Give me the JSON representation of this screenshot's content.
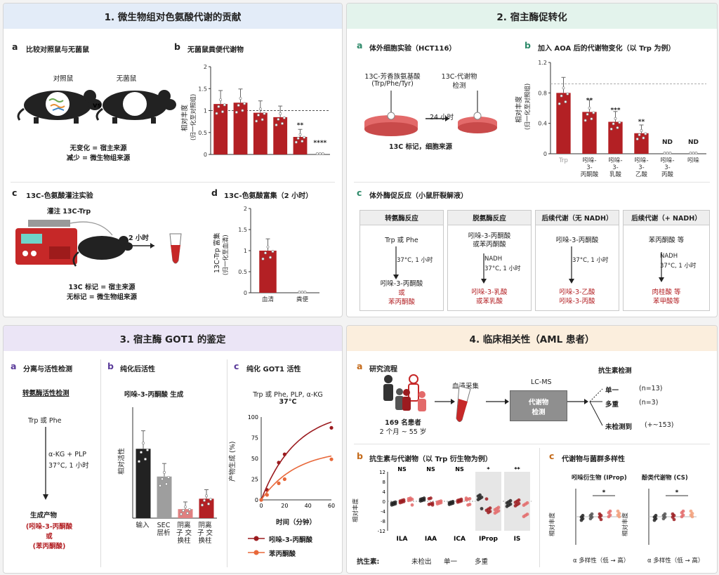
{
  "p1": {
    "title": "1. 微生物组对色氨酸代谢的贡献",
    "a": {
      "label": "a",
      "title": "比较对照鼠与无菌鼠",
      "control": "对照鼠",
      "germfree": "无菌鼠",
      "vs": "vs",
      "note1": "无变化 = 宿主来源",
      "note2": "减少 = 微生物组来源"
    },
    "b": {
      "label": "b",
      "title": "无菌鼠粪便代谢物",
      "ylabel": "相对丰度",
      "ysub": "(归一化至对照组)",
      "chart_data": {
        "type": "bar",
        "values": [
          1.15,
          1.18,
          0.95,
          0.85,
          0.4,
          0.0
        ],
        "sig": [
          "",
          "",
          "",
          "",
          "**",
          "****"
        ],
        "ylim": [
          0,
          2
        ],
        "yticks": [
          0,
          0.5,
          1.0,
          1.5,
          2.0
        ],
        "refline": 1.0
      }
    },
    "c": {
      "label": "c",
      "title": "13C-色氨酸灌注实验",
      "infuse": "灌注 13C-Trp",
      "time": "2 小时",
      "note1": "13C 标记 = 宿主来源",
      "note2": "无标记 = 微生物组来源"
    },
    "d": {
      "label": "d",
      "title": "13C-色氨酸富集（2 小时）",
      "ylabel": "13C-Trp 富集",
      "ysub": "(归一化至血清)",
      "chart_data": {
        "type": "bar",
        "categories": [
          "血清",
          "粪便"
        ],
        "values": [
          1.0,
          0.0
        ],
        "ylim": [
          0,
          2
        ],
        "yticks": [
          0,
          0.5,
          1.0,
          1.5,
          2.0
        ]
      }
    }
  },
  "p2": {
    "title": "2. 宿主酶促转化",
    "a": {
      "label": "a",
      "title": "体外细胞实验（HCT116）",
      "sub1": "13C-芳香族氨基酸",
      "sub2": "(Trp/Phe/Tyr)",
      "prod1": "13C-代谢物",
      "prod2": "检测",
      "time": "24 小时",
      "note": "13C 标记，细胞来源"
    },
    "b": {
      "label": "b",
      "title": "加入 AOA 后的代谢物变化（以 Trp 为例）",
      "ylabel": "相对丰度",
      "ysub": "(归一化至对照组)",
      "chart_data": {
        "type": "bar",
        "categories": [
          "Trp",
          "吲哚-3-丙酮酸",
          "吲哚-3-乳酸",
          "吲哚-3-乙酸",
          "吲哚-3-丙酸",
          "吲哚"
        ],
        "values": [
          0.8,
          0.55,
          0.42,
          0.27,
          0,
          0
        ],
        "sig": [
          "",
          "**",
          "***",
          "**",
          "ND",
          "ND"
        ],
        "last_label": "ND",
        "ylim": [
          0,
          1.2
        ],
        "yticks": [
          0,
          0.4,
          0.8,
          1.2
        ]
      }
    },
    "c": {
      "label": "c",
      "title": "体外酶促反应（小鼠肝裂解液）",
      "boxes": [
        {
          "head": "转氨酶反应",
          "sub": "Trp 或 Phe",
          "cond": "37°C, 1 小时",
          "prod1": "吲哚-3-丙酮酸",
          "prod2": "或",
          "prod3": "苯丙酮酸"
        },
        {
          "head": "脱氨酶反应",
          "sub": "吲哚-3-丙酮酸",
          "sub2": "或苯丙酮酸",
          "cond0": "NADH",
          "cond": "37°C, 1 小时",
          "prod1": "吲哚-3-乳酸",
          "prod2": "或苯乳酸"
        },
        {
          "head": "后续代谢（无 NADH）",
          "sub": "吲哚-3-丙酮酸",
          "cond": "37°C, 1 小时",
          "prod1": "吲哚-3-乙酸",
          "prod2": "吲哚-3-丙酸"
        },
        {
          "head": "后续代谢（+ NADH）",
          "sub": "苯丙酮酸 等",
          "cond0": "NADH",
          "cond": "37°C, 1 小时",
          "prod1": "肉桂酸 等",
          "prod2": "苯甲酸等"
        }
      ]
    }
  },
  "p3": {
    "title": "3. 宿主酶 GOT1 的鉴定",
    "a": {
      "label": "a",
      "title": "分离与活性检测",
      "sub": "转氨酶活性检测",
      "input": "Trp 或 Phe",
      "cond1": "α-KG + PLP",
      "cond2": "37°C, 1 小时",
      "prod": "生成产物",
      "p1": "(吲哚-3-丙酮酸",
      "p2": "或",
      "p3": "(苯丙酮酸)"
    },
    "b": {
      "label": "b",
      "title": "纯化后活性",
      "subtitle": "吲哚-3-丙酮酸 生成",
      "ylabel": "相对活性",
      "chart_data": {
        "type": "bar",
        "categories": [
          "输入",
          "SEC 层析",
          "阴离子 交换柱",
          "阴离子 交换柱"
        ],
        "values": [
          1.0,
          0.6,
          0.13,
          0.28
        ],
        "colors": [
          "#222222",
          "#9e9e9e",
          "#e08080",
          "#b32024"
        ],
        "ylim": [
          0,
          1.6
        ]
      }
    },
    "c": {
      "label": "c",
      "title": "纯化 GOT1 活性",
      "cond1": "Trp 或 Phe, PLP, α-KG",
      "cond2": "37°C",
      "ylabel": "产物生成 (%)",
      "xlabel": "时间（分钟）",
      "chart_data": {
        "type": "line",
        "x": [
          0,
          5,
          15,
          20,
          60
        ],
        "ylim": [
          0,
          100
        ],
        "xlim": [
          0,
          60
        ],
        "xticks": [
          0,
          20,
          40,
          60
        ],
        "yticks": [
          0,
          25,
          50,
          75,
          100
        ],
        "series": [
          {
            "name": "吲哚-3-丙酮酸",
            "y": [
              0,
              12,
              45,
              55,
              87
            ],
            "color": "#9b1b1f"
          },
          {
            "name": "苯丙酮酸",
            "y": [
              0,
              6,
              20,
              25,
              49
            ],
            "color": "#e8683a"
          }
        ]
      }
    }
  },
  "p4": {
    "title": "4. 临床相关性（AML 患者）",
    "a": {
      "label": "a",
      "title": "研究流程",
      "patients1": "169 名患者",
      "patients2": "2 个月 ~ 55 岁",
      "blood": "血清采集",
      "lcms": "LC-MS",
      "box1": "代谢物",
      "box2": "检测",
      "abx": "抗生素检测",
      "o1": "单一",
      "o1n": "(n=13)",
      "o2": "多重",
      "o2n": "(n=3)",
      "o3": "未检测到",
      "o3n": "(+~153)"
    },
    "b": {
      "label": "b",
      "title": "抗生素与代谢物（以 Trp 衍生物为例）",
      "ylabel": "相对丰度",
      "chart_data": {
        "type": "scatter",
        "groups": [
          "ILA",
          "IAA",
          "ICA",
          "IProp",
          "IS"
        ],
        "sig": [
          "NS",
          "NS",
          "NS",
          "*",
          "**"
        ],
        "yticks": [
          -12,
          -8,
          -4,
          0,
          4,
          8,
          12
        ],
        "ylim": [
          -12,
          12
        ]
      },
      "abx_label": "抗生素:",
      "abx_levels": [
        "未检出",
        "单一",
        "多重"
      ]
    },
    "c": {
      "label": "c",
      "title": "代谢物与菌群多样性",
      "left": {
        "title": "吲哚衍生物 (IProp)",
        "xlabel": "α 多样性（低 → 高）",
        "sig": "*"
      },
      "right": {
        "title": "酚类代谢物 (CS)",
        "xlabel": "α 多样性（低 → 高）",
        "sig": "*"
      },
      "ylabel": "相对丰度",
      "yticks": [
        -12,
        -8,
        -4,
        0,
        4,
        8,
        12
      ]
    }
  }
}
